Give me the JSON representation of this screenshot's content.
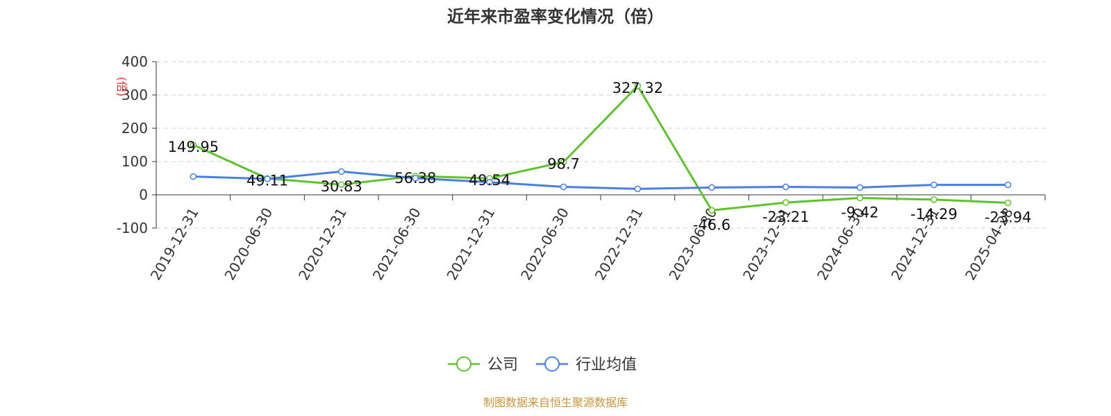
{
  "title": "近年来市盈率变化情况（倍）",
  "source": "制图数据来自恒生聚源数据库",
  "colors": {
    "company": "#5ec22c",
    "industry": "#4a7fe0",
    "unit": "#e03030",
    "source": "#c8973a",
    "grid": "#cccccc",
    "axis": "#333333"
  },
  "chart_data": {
    "type": "line",
    "title": "近年来市盈率变化情况（倍）",
    "ylabel": "(倍)",
    "xlabel": "",
    "ylim": [
      -100,
      400
    ],
    "yticks": [
      400,
      300,
      200,
      100,
      0,
      -100
    ],
    "ytick_labels": [
      "400",
      "300",
      "200",
      "100",
      "0",
      "-100"
    ],
    "grid": true,
    "legend_position": "bottom-center",
    "categories": [
      "2019-12-31",
      "2020-06-30",
      "2020-12-31",
      "2021-06-30",
      "2021-12-31",
      "2022-06-30",
      "2022-12-31",
      "2023-06-30",
      "2023-12-31",
      "2024-06-30",
      "2024-12-31",
      "2025-04-28"
    ],
    "series": [
      {
        "name": "公司",
        "values": [
          149.95,
          49.11,
          30.83,
          56.38,
          49.54,
          98.7,
          327.32,
          -46.6,
          -23.21,
          -9.42,
          -14.29,
          -23.94
        ],
        "labels": [
          "149.95",
          "49.11",
          "30.83",
          "56.38",
          "49.54",
          "98.7",
          "327.32",
          "-46.6",
          "-23.21",
          "-9.42",
          "-14.29",
          "-23.94"
        ]
      },
      {
        "name": "行业均值",
        "values": [
          55,
          48,
          70,
          50,
          38,
          24,
          18,
          22,
          24,
          22,
          30,
          30
        ]
      }
    ]
  }
}
